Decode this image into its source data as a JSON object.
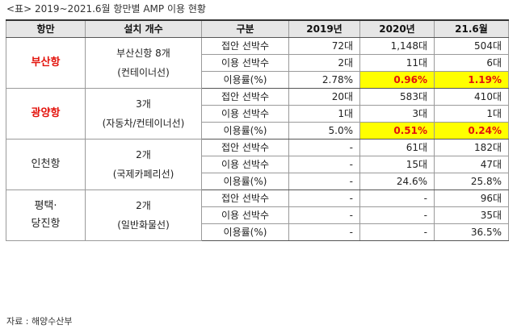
{
  "caption": "<표> 2019~2021.6월 항만별 AMP 이용 현황",
  "source": "자료 : 해양수산부",
  "headers": [
    "항만",
    "설치 개수",
    "구분",
    "2019년",
    "2020년",
    "21.6월"
  ],
  "groups": [
    {
      "port_lines": [
        "부산항"
      ],
      "install_lines": [
        "부산신항 8개",
        "(컨테이너선)"
      ],
      "rows": [
        {
          "label": "접안 선박수",
          "v2019": "72대",
          "v2020": "1,148대",
          "v21": "504대"
        },
        {
          "label": "이용 선박수",
          "v2019": "2대",
          "v2020": "11대",
          "v21": "6대"
        },
        {
          "label": "이용률(%)",
          "v2019": "2.78%",
          "v2020": "0.96%",
          "v21": "1.19%"
        }
      ]
    },
    {
      "port_lines": [
        "광양항"
      ],
      "install_lines": [
        "3개",
        "(자동차/컨테이너선)"
      ],
      "rows": [
        {
          "label": "접안 선박수",
          "v2019": "20대",
          "v2020": "583대",
          "v21": "410대"
        },
        {
          "label": "이용 선박수",
          "v2019": "1대",
          "v2020": "3대",
          "v21": "1대"
        },
        {
          "label": "이용률(%)",
          "v2019": "5.0%",
          "v2020": "0.51%",
          "v21": "0.24%"
        }
      ]
    },
    {
      "port_lines": [
        "인천항"
      ],
      "install_lines": [
        "2개",
        "(국제카페리선)"
      ],
      "rows": [
        {
          "label": "접안 선박수",
          "v2019": "-",
          "v2020": "61대",
          "v21": "182대"
        },
        {
          "label": "이용 선박수",
          "v2019": "-",
          "v2020": "15대",
          "v21": "47대"
        },
        {
          "label": "이용률(%)",
          "v2019": "-",
          "v2020": "24.6%",
          "v21": "25.8%"
        }
      ]
    },
    {
      "port_lines": [
        "평택·",
        "당진항"
      ],
      "install_lines": [
        "2개",
        "(일반화물선)"
      ],
      "rows": [
        {
          "label": "접안 선박수",
          "v2019": "-",
          "v2020": "-",
          "v21": "96대"
        },
        {
          "label": "이용 선박수",
          "v2019": "-",
          "v2020": "-",
          "v21": "35대"
        },
        {
          "label": "이용률(%)",
          "v2019": "-",
          "v2020": "-",
          "v21": "36.5%"
        }
      ]
    }
  ]
}
